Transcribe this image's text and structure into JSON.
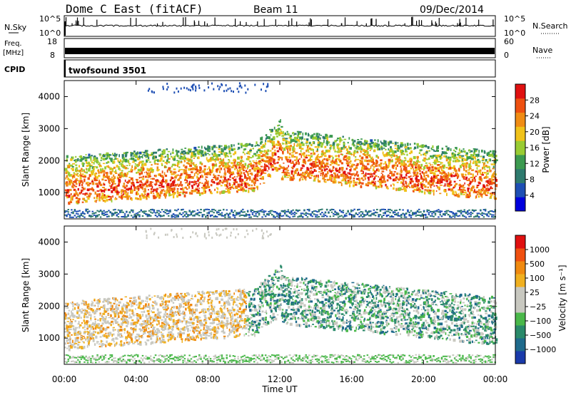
{
  "header": {
    "title": "Dome C East (fitACF)",
    "beam": "Beam 11",
    "date": "09/Dec/2014"
  },
  "nsky_panel": {
    "left_label": "N.Sky",
    "left_ticks": [
      "10^5",
      "10^0"
    ],
    "right_ticks": [
      "10^5",
      "10^0"
    ],
    "right_label": "N.Search"
  },
  "freq_panel": {
    "left_label_top": "Freq.",
    "left_label_unit": "[MHz]",
    "left_ticks": [
      "18",
      "8"
    ],
    "right_ticks": [
      "60",
      "0"
    ],
    "right_label": "Nave",
    "cpid_label": "CPID",
    "cpid_value": "twofsound 3501"
  },
  "chart_data": [
    {
      "type": "heatmap",
      "name": "power-panel",
      "ylabel": "Slant Range [km]",
      "x_ticks": [
        "00:00",
        "04:00",
        "08:00",
        "12:00",
        "16:00",
        "20:00",
        "00:00"
      ],
      "y_ticks": [
        1000,
        2000,
        3000,
        4000
      ],
      "ylim": [
        180,
        4500
      ],
      "xlim_hours": [
        0,
        24
      ],
      "colorbar_label": "Power [dB]",
      "colorbar_ticks": [
        "28",
        "24",
        "20",
        "16",
        "12",
        "8",
        "4"
      ],
      "colorbar_colors": [
        "#0000dd",
        "#1e4fb4",
        "#2e7a6e",
        "#3c9a50",
        "#99cc33",
        "#f0c21a",
        "#f08c14",
        "#ee5010",
        "#e01010"
      ]
    },
    {
      "type": "heatmap",
      "name": "velocity-panel",
      "ylabel": "Slant Range [km]",
      "xlabel": "Time UT",
      "x_ticks": [
        "00:00",
        "04:00",
        "08:00",
        "12:00",
        "16:00",
        "20:00",
        "00:00"
      ],
      "y_ticks": [
        1000,
        2000,
        3000,
        4000
      ],
      "ylim": [
        180,
        4500
      ],
      "xlim_hours": [
        0,
        24
      ],
      "colorbar_label": "Velocity [m s⁻¹]",
      "colorbar_ticks": [
        "1000",
        "500",
        "100",
        "25",
        "−25",
        "−100",
        "−500",
        "−1000"
      ],
      "colorbar_colors": [
        "#1a3aaa",
        "#1f6a8c",
        "#2a8a6a",
        "#4ab84a",
        "#c8c8c0",
        "#c8c8c0",
        "#f0b020",
        "#f08a10",
        "#f05010",
        "#e01010"
      ]
    }
  ]
}
